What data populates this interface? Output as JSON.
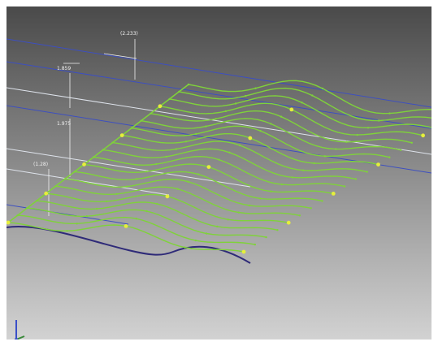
{
  "viewport": {
    "background_top": "#4a4a4a",
    "background_bottom": "#d2d2d2",
    "curve_color": "#7fd23a",
    "point_color": "#e6ee3c",
    "base_curve_color": "#2e2a78",
    "plane_edge_color": "#3d4fc0",
    "plane_edge_light": "#dfe4ec"
  },
  "dimensions": [
    {
      "label": "(2.233)"
    },
    {
      "label": "1.859"
    },
    {
      "label": "1.975"
    },
    {
      "label": "(1.28)"
    }
  ],
  "view_cube": {
    "icon": "axis-triad-icon",
    "x_color": "#d83030",
    "y_color": "#3a8a3a",
    "z_color": "#3a4fc8"
  }
}
